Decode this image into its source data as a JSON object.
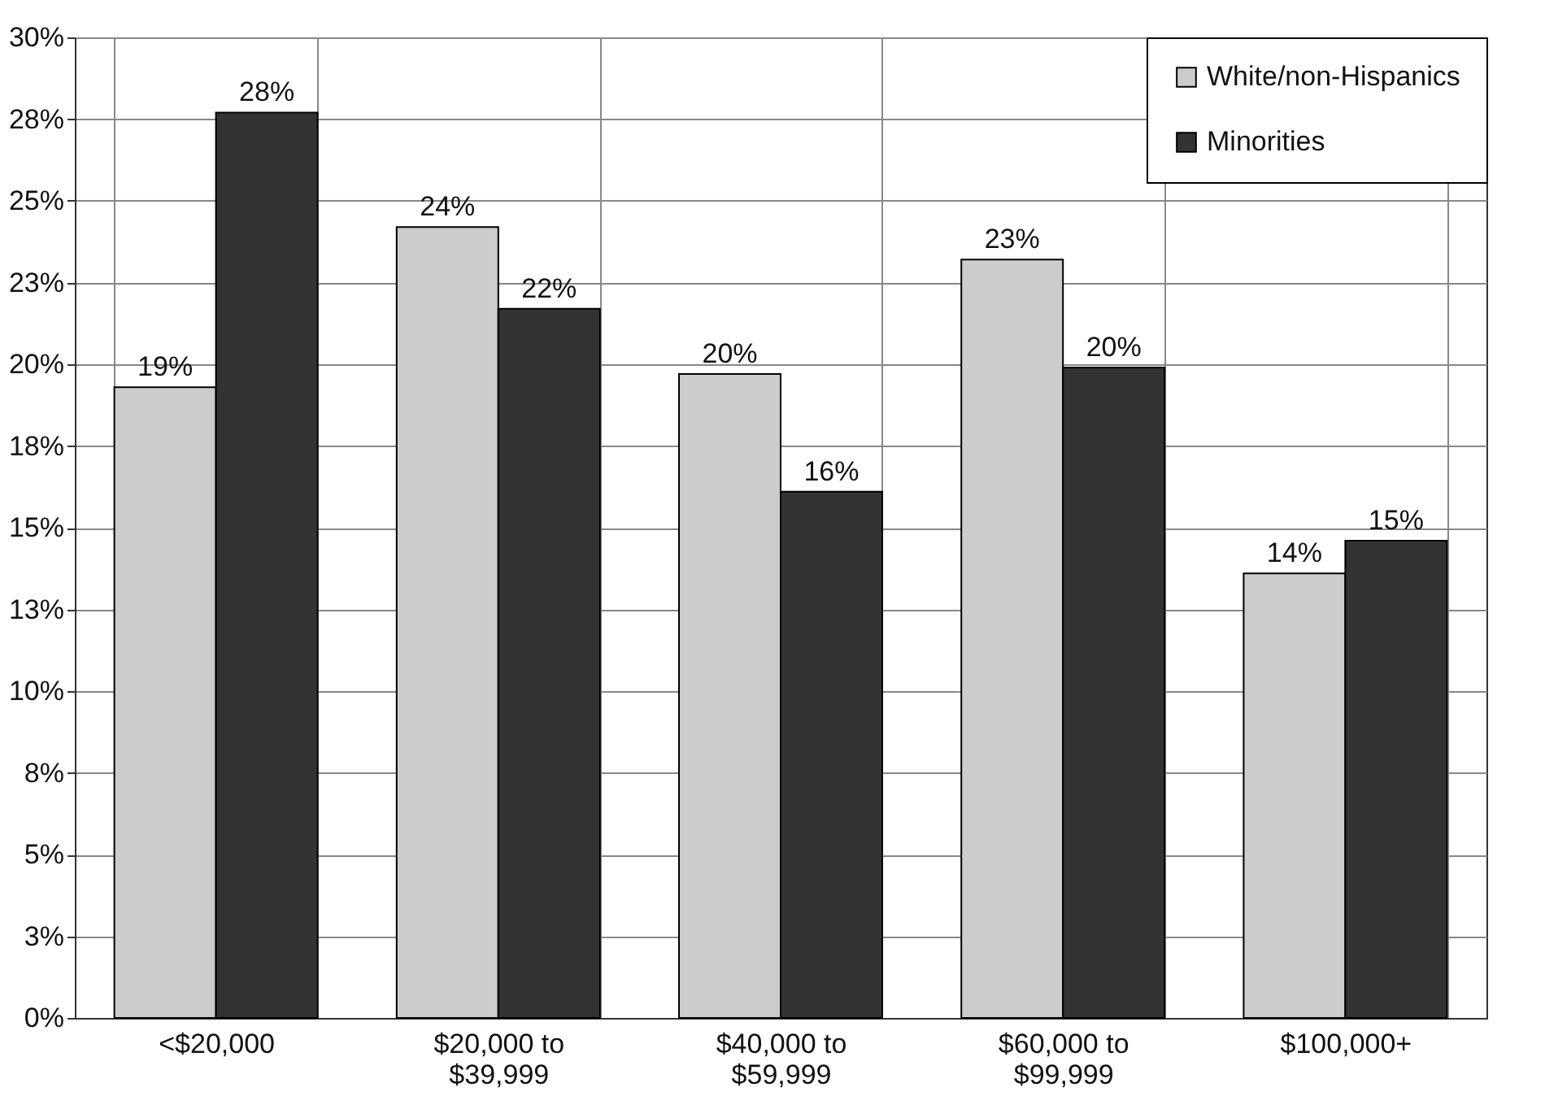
{
  "chart_data": {
    "type": "bar",
    "categories": [
      "<$20,000",
      "$20,000 to\n$39,999",
      "$40,000 to\n$59,999",
      "$60,000 to\n$99,999",
      "$100,000+"
    ],
    "series": [
      {
        "name": "White/non-Hispanics",
        "color": "#cccccc",
        "values": [
          19.3,
          24.2,
          19.7,
          23.2,
          13.6
        ],
        "value_labels": [
          "19%",
          "24%",
          "20%",
          "23%",
          "14%"
        ]
      },
      {
        "name": "Minorities",
        "color": "#333333",
        "values": [
          27.7,
          21.7,
          16.1,
          19.9,
          14.6
        ],
        "value_labels": [
          "28%",
          "22%",
          "16%",
          "20%",
          "15%"
        ]
      }
    ],
    "ylim": [
      0,
      30
    ],
    "yticks": [
      {
        "value": 0,
        "label": "0%"
      },
      {
        "value": 2.5,
        "label": "3%"
      },
      {
        "value": 5,
        "label": "5%"
      },
      {
        "value": 7.5,
        "label": "8%"
      },
      {
        "value": 10,
        "label": "10%"
      },
      {
        "value": 12.5,
        "label": "13%"
      },
      {
        "value": 15,
        "label": "15%"
      },
      {
        "value": 17.5,
        "label": "18%"
      },
      {
        "value": 20,
        "label": "20%"
      },
      {
        "value": 22.5,
        "label": "23%"
      },
      {
        "value": 25,
        "label": "25%"
      },
      {
        "value": 27.5,
        "label": "28%"
      },
      {
        "value": 30,
        "label": "30%"
      }
    ],
    "grid": true,
    "legend": "top right"
  }
}
